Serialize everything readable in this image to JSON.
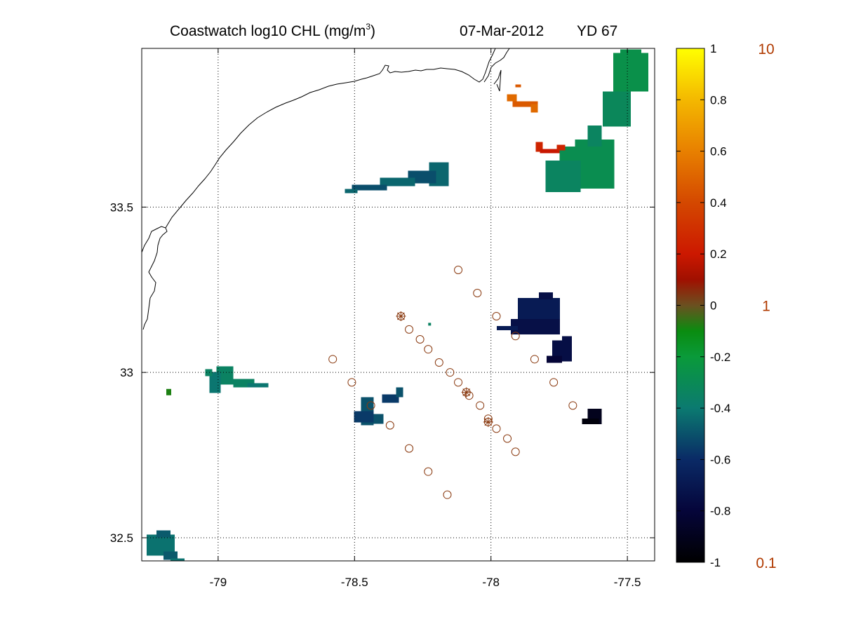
{
  "title": {
    "prefix": "Coastwatch  log10  CHL (mg/m",
    "superscript": "3",
    "suffix": ")",
    "date": "07-Mar-2012",
    "yearday": "YD 67"
  },
  "map": {
    "lon_range": [
      -79.28,
      -77.4
    ],
    "lat_range": [
      32.43,
      33.98
    ],
    "lon_ticks": [
      -79,
      -78.5,
      -78,
      -77.5
    ],
    "lon_tick_labels": [
      "-79",
      "-78.5",
      "-78",
      "-77.5"
    ],
    "lat_ticks": [
      32.5,
      33,
      33.5
    ],
    "lat_tick_labels": [
      "32.5",
      "33",
      "33.5"
    ],
    "grid": "dotted",
    "coastline_color": "#000000"
  },
  "colorbar": {
    "range": [
      -1,
      1
    ],
    "tick_labels": [
      "1",
      "0.8",
      "0.6",
      "0.4",
      "0.2",
      "0",
      "-0.2",
      "-0.4",
      "-0.6",
      "-0.8",
      "-1"
    ],
    "tick_values": [
      1,
      0.8,
      0.6,
      0.4,
      0.2,
      0,
      -0.2,
      -0.4,
      -0.6,
      -0.8,
      -1
    ],
    "right_labels": [
      {
        "value": 1,
        "text": "10"
      },
      {
        "value": 0,
        "text": "1"
      },
      {
        "value": -1,
        "text": "0.1"
      }
    ],
    "right_label_color": "#b03a00",
    "stops": [
      {
        "v": -1.0,
        "c": "#000000"
      },
      {
        "v": -0.8,
        "c": "#05053a"
      },
      {
        "v": -0.6,
        "c": "#0a2a66"
      },
      {
        "v": -0.4,
        "c": "#0b7a70"
      },
      {
        "v": -0.2,
        "c": "#0a9a3a"
      },
      {
        "v": -0.1,
        "c": "#0a8c10"
      },
      {
        "v": 0.0,
        "c": "#6b5020"
      },
      {
        "v": 0.1,
        "c": "#a01000"
      },
      {
        "v": 0.2,
        "c": "#cc1800"
      },
      {
        "v": 0.4,
        "c": "#d44800"
      },
      {
        "v": 0.6,
        "c": "#e88000"
      },
      {
        "v": 0.8,
        "c": "#f4b800"
      },
      {
        "v": 1.0,
        "c": "#ffff00"
      }
    ]
  },
  "chl_patches": [
    {
      "name": "northeast-gulfstream",
      "lon": -77.62,
      "lat": 33.62,
      "value": -0.28
    },
    {
      "name": "northeast-strip",
      "lon": -77.5,
      "lat": 33.85,
      "value": -0.26
    },
    {
      "name": "orange-streak",
      "lon": -77.87,
      "lat": 33.82,
      "value": 0.52
    },
    {
      "name": "red-streak",
      "lon": -77.8,
      "lat": 33.68,
      "value": 0.25
    },
    {
      "name": "midshelf-streak",
      "lon": -78.33,
      "lat": 33.58,
      "value": -0.45
    },
    {
      "name": "dark-blob-east",
      "lon": -77.85,
      "lat": 33.17,
      "value": -0.68
    },
    {
      "name": "dark-blob-small",
      "lon": -77.75,
      "lat": 33.05,
      "value": -0.75
    },
    {
      "name": "dark-blob-southeast",
      "lon": -77.62,
      "lat": 32.86,
      "value": -0.9
    },
    {
      "name": "west-coastal-patch",
      "lon": -78.97,
      "lat": 32.98,
      "value": -0.35
    },
    {
      "name": "central-patch",
      "lon": -78.45,
      "lat": 32.87,
      "value": -0.5
    },
    {
      "name": "southwest-patch",
      "lon": -79.2,
      "lat": 32.48,
      "value": -0.42
    }
  ],
  "stations": [
    {
      "lon": -78.12,
      "lat": 33.31
    },
    {
      "lon": -78.05,
      "lat": 33.24
    },
    {
      "lon": -77.98,
      "lat": 33.17
    },
    {
      "lon": -77.91,
      "lat": 33.11
    },
    {
      "lon": -77.84,
      "lat": 33.04
    },
    {
      "lon": -77.77,
      "lat": 32.97
    },
    {
      "lon": -77.7,
      "lat": 32.9
    },
    {
      "lon": -78.3,
      "lat": 33.13
    },
    {
      "lon": -78.26,
      "lat": 33.1
    },
    {
      "lon": -78.23,
      "lat": 33.07
    },
    {
      "lon": -78.19,
      "lat": 33.03
    },
    {
      "lon": -78.15,
      "lat": 33.0
    },
    {
      "lon": -78.12,
      "lat": 32.97
    },
    {
      "lon": -78.08,
      "lat": 32.93
    },
    {
      "lon": -78.04,
      "lat": 32.9
    },
    {
      "lon": -78.01,
      "lat": 32.86
    },
    {
      "lon": -77.98,
      "lat": 32.83
    },
    {
      "lon": -77.94,
      "lat": 32.8
    },
    {
      "lon": -77.91,
      "lat": 32.76
    },
    {
      "lon": -78.58,
      "lat": 33.04
    },
    {
      "lon": -78.51,
      "lat": 32.97
    },
    {
      "lon": -78.44,
      "lat": 32.9
    },
    {
      "lon": -78.37,
      "lat": 32.84
    },
    {
      "lon": -78.3,
      "lat": 32.77
    },
    {
      "lon": -78.23,
      "lat": 32.7
    },
    {
      "lon": -78.16,
      "lat": 32.63
    }
  ],
  "stations_starred": [
    {
      "lon": -78.33,
      "lat": 33.17
    },
    {
      "lon": -78.09,
      "lat": 32.94
    },
    {
      "lon": -78.01,
      "lat": 32.85
    }
  ],
  "station_color": "#8a3a10"
}
